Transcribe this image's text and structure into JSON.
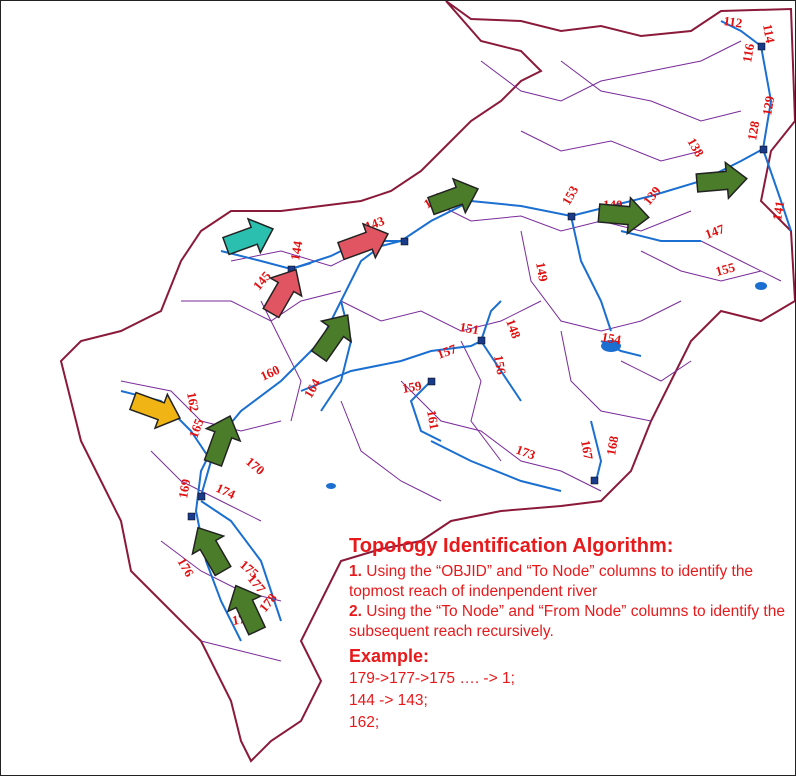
{
  "map": {
    "reach_labels": [
      "112",
      "114",
      "116",
      "129",
      "128",
      "138",
      "139",
      "140",
      "141",
      "143",
      "142",
      "144",
      "145",
      "147",
      "148",
      "149",
      "151",
      "153",
      "154",
      "155",
      "156",
      "157",
      "159",
      "160",
      "161",
      "162",
      "164",
      "165",
      "167",
      "168",
      "169",
      "170",
      "173",
      "174",
      "175",
      "176",
      "177",
      "178",
      "179",
      "150"
    ],
    "colors": {
      "boundary": "#8b1a3a",
      "subbasin": "#7a2a9a",
      "river": "#1a6fd0",
      "label": "#e01010",
      "arrow_green": "#4a7c2a",
      "arrow_teal": "#2bbfb0",
      "arrow_red": "#e05561",
      "arrow_yellow": "#f0b414",
      "node": "#1a3a8a"
    }
  },
  "legend": {
    "title": "Topology Identification Algorithm:",
    "step1_num": "1.",
    "step1_text": " Using the “OBJID” and “To Node” columns to identify the topmost reach of indenpendent river",
    "step2_num": "2.",
    "step2_text": " Using the “To Node” and “From Node” columns to identify the subsequent reach recursively.",
    "example_title": "Example:",
    "examples": [
      "179->177->175 …. -> 1;",
      "144 -> 143;",
      "162;"
    ]
  }
}
